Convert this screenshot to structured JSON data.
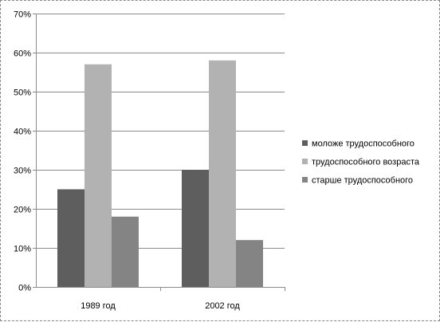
{
  "chart_data": {
    "type": "bar",
    "title": "",
    "xlabel": "",
    "ylabel": "",
    "ylim": [
      0,
      70
    ],
    "ytick_step": 10,
    "ytick_suffix": "%",
    "grid": true,
    "legend_position": "right",
    "categories": [
      "1989 год",
      "2002 год"
    ],
    "series": [
      {
        "name": "моложе трудоспособного",
        "values": [
          25,
          30
        ],
        "color": "#5e5e5e"
      },
      {
        "name": "трудоспособного возраста",
        "values": [
          57,
          58
        ],
        "color": "#b2b2b2"
      },
      {
        "name": "старше трудоспособного",
        "values": [
          18,
          12
        ],
        "color": "#848484"
      }
    ]
  }
}
